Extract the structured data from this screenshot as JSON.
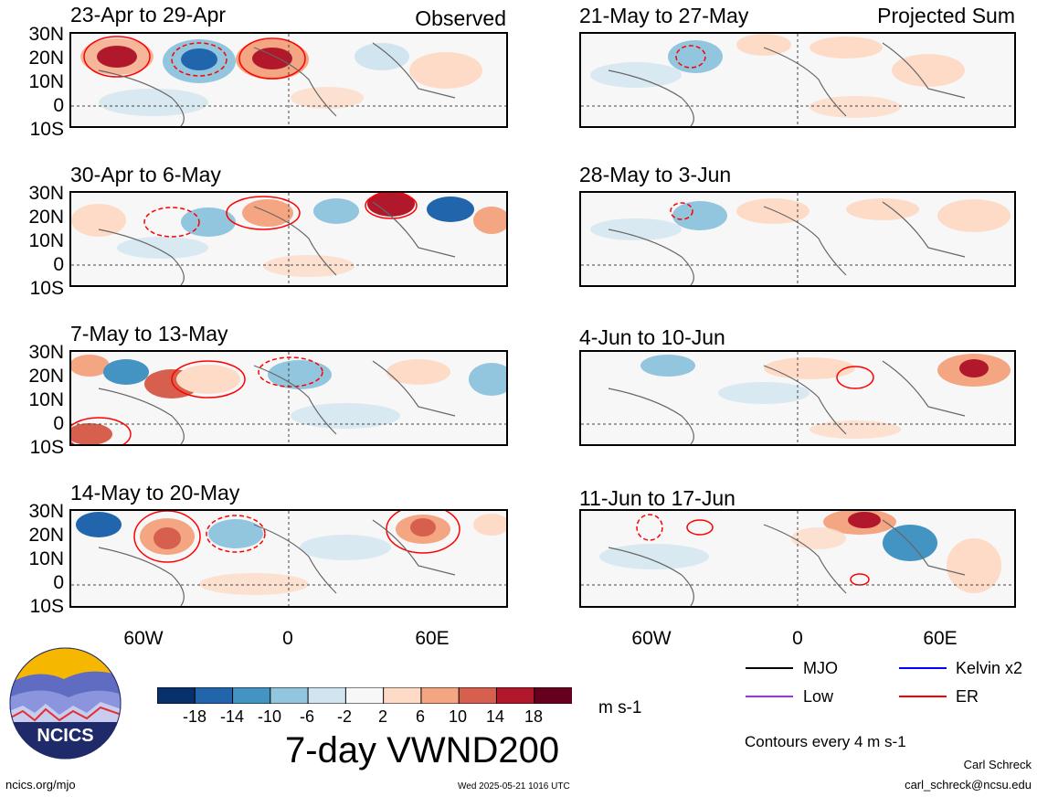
{
  "header_labels": {
    "observed": "Observed",
    "projected": "Projected Sum"
  },
  "lat_ticks": [
    "30N",
    "20N",
    "10N",
    "0",
    "10S"
  ],
  "lon_ticks": [
    "60W",
    "0",
    "60E"
  ],
  "panels": [
    {
      "title": "23-Apr to 29-Apr",
      "column": "left"
    },
    {
      "title": "30-Apr to 6-May",
      "column": "left"
    },
    {
      "title": "7-May to 13-May",
      "column": "left"
    },
    {
      "title": "14-May to 20-May",
      "column": "left"
    },
    {
      "title": "21-May to 27-May",
      "column": "right"
    },
    {
      "title": "28-May to 3-Jun",
      "column": "right"
    },
    {
      "title": "4-Jun to 10-Jun",
      "column": "right"
    },
    {
      "title": "11-Jun to 17-Jun",
      "column": "right"
    }
  ],
  "colorbar": {
    "labels": [
      "-18",
      "-14",
      "-10",
      "-6",
      "-2",
      "2",
      "6",
      "10",
      "14",
      "18"
    ],
    "colors": [
      "#08306b",
      "#2166ac",
      "#4393c3",
      "#92c5de",
      "#d1e5f0",
      "#f7f7f7",
      "#fddbc7",
      "#f4a582",
      "#d6604d",
      "#b2182b",
      "#67001f"
    ],
    "units": "m s-1"
  },
  "main_title": "7-day VWND200",
  "legend": {
    "items": [
      {
        "label": "MJO",
        "color": "#000000"
      },
      {
        "label": "Kelvin x2",
        "color": "#0000ff"
      },
      {
        "label": "Low",
        "color": "#9b30ff"
      },
      {
        "label": "ER",
        "color": "#ff0000"
      }
    ],
    "contour_note": "Contours every 4 m s-1"
  },
  "logo": {
    "text": "NCICS"
  },
  "footer": {
    "url": "ncics.org/mjo",
    "timestamp": "Wed 2025-05-21 1016 UTC",
    "author": "Carl Schreck",
    "email": "carl_schreck@ncsu.edu"
  }
}
